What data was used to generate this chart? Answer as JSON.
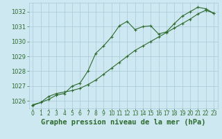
{
  "title": "Graphe pression niveau de la mer (hPa)",
  "x_hours": [
    0,
    1,
    2,
    3,
    4,
    5,
    6,
    7,
    8,
    9,
    10,
    11,
    12,
    13,
    14,
    15,
    16,
    17,
    18,
    19,
    20,
    21,
    22,
    23
  ],
  "y_main": [
    1025.7,
    1025.9,
    1026.1,
    1026.4,
    1026.5,
    1027.0,
    1027.2,
    1028.0,
    1029.2,
    1029.7,
    1030.3,
    1031.05,
    1031.35,
    1030.8,
    1031.0,
    1031.05,
    1030.5,
    1030.65,
    1031.2,
    1031.7,
    1032.0,
    1032.3,
    1032.2,
    1031.9
  ],
  "y_trend": [
    1025.75,
    1025.9,
    1026.3,
    1026.5,
    1026.6,
    1026.7,
    1026.85,
    1027.1,
    1027.4,
    1027.8,
    1028.2,
    1028.6,
    1029.0,
    1029.4,
    1029.7,
    1030.0,
    1030.3,
    1030.6,
    1030.9,
    1031.2,
    1031.5,
    1031.85,
    1032.1,
    1031.9
  ],
  "ylim_min": 1025.5,
  "ylim_max": 1032.6,
  "yticks": [
    1026,
    1027,
    1028,
    1029,
    1030,
    1031,
    1032
  ],
  "xticks": [
    0,
    1,
    2,
    3,
    4,
    5,
    6,
    7,
    8,
    9,
    10,
    11,
    12,
    13,
    14,
    15,
    16,
    17,
    18,
    19,
    20,
    21,
    22,
    23
  ],
  "line_color": "#2d6a2d",
  "marker": "+",
  "bg_color": "#cde8f0",
  "grid_color": "#a8c8d8",
  "title_color": "#2d6a2d",
  "title_fontsize": 7.5,
  "tick_fontsize": 6.0,
  "linewidth": 0.8,
  "markersize": 3.5,
  "markeredgewidth": 0.8
}
